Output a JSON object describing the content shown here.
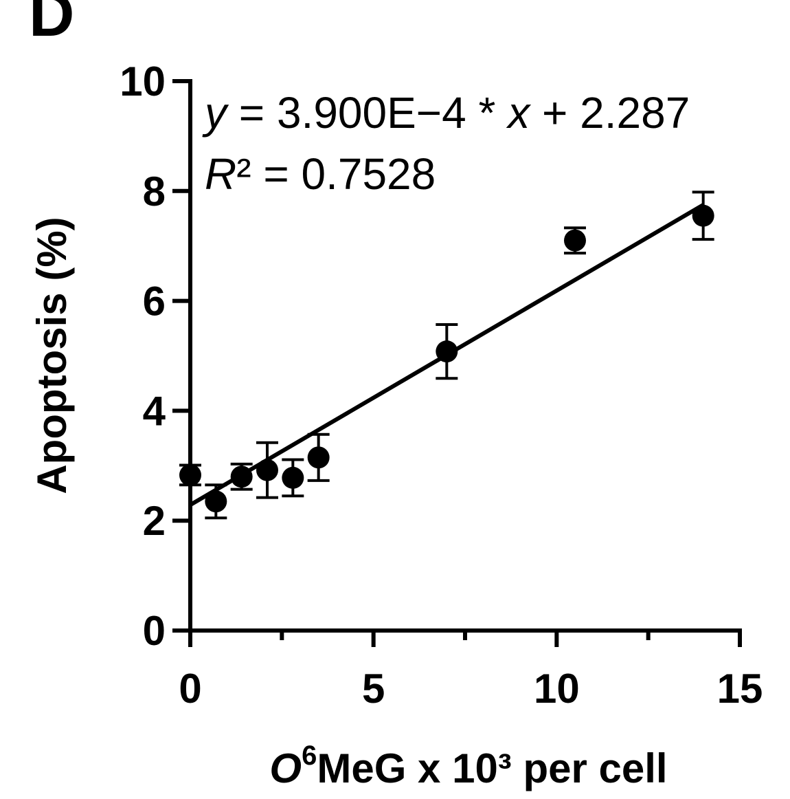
{
  "panel_label": "D",
  "chart_data": {
    "type": "scatter",
    "xlabel_italic": "O",
    "xlabel_sup": "6",
    "xlabel_rest": "MeG x 10³ per cell",
    "ylabel": "Apoptosis (%)",
    "xlim": [
      0,
      15
    ],
    "ylim": [
      0,
      10
    ],
    "x_ticks": [
      0,
      5,
      10,
      15
    ],
    "y_ticks": [
      0,
      2,
      4,
      6,
      8,
      10
    ],
    "grid": false,
    "points": [
      {
        "x": 0.0,
        "y": 2.83,
        "err": 0.18
      },
      {
        "x": 0.7,
        "y": 2.35,
        "err": 0.3
      },
      {
        "x": 1.4,
        "y": 2.8,
        "err": 0.23
      },
      {
        "x": 2.1,
        "y": 2.92,
        "err": 0.5
      },
      {
        "x": 2.8,
        "y": 2.78,
        "err": 0.33
      },
      {
        "x": 3.5,
        "y": 3.15,
        "err": 0.42
      },
      {
        "x": 7.0,
        "y": 5.08,
        "err": 0.49
      },
      {
        "x": 10.5,
        "y": 7.1,
        "err": 0.23
      },
      {
        "x": 14.0,
        "y": 7.55,
        "err": 0.43
      }
    ],
    "fit": {
      "slope_per_unit_x": 0.39,
      "intercept": 2.287,
      "x_range": [
        0,
        14
      ]
    },
    "equation": {
      "y_var": "y",
      "eq_mid": " = 3.900E−4 * ",
      "x_var": "x",
      "eq_end": " + 2.287",
      "r_var": "R",
      "r_rest": "² = 0.7528"
    }
  }
}
